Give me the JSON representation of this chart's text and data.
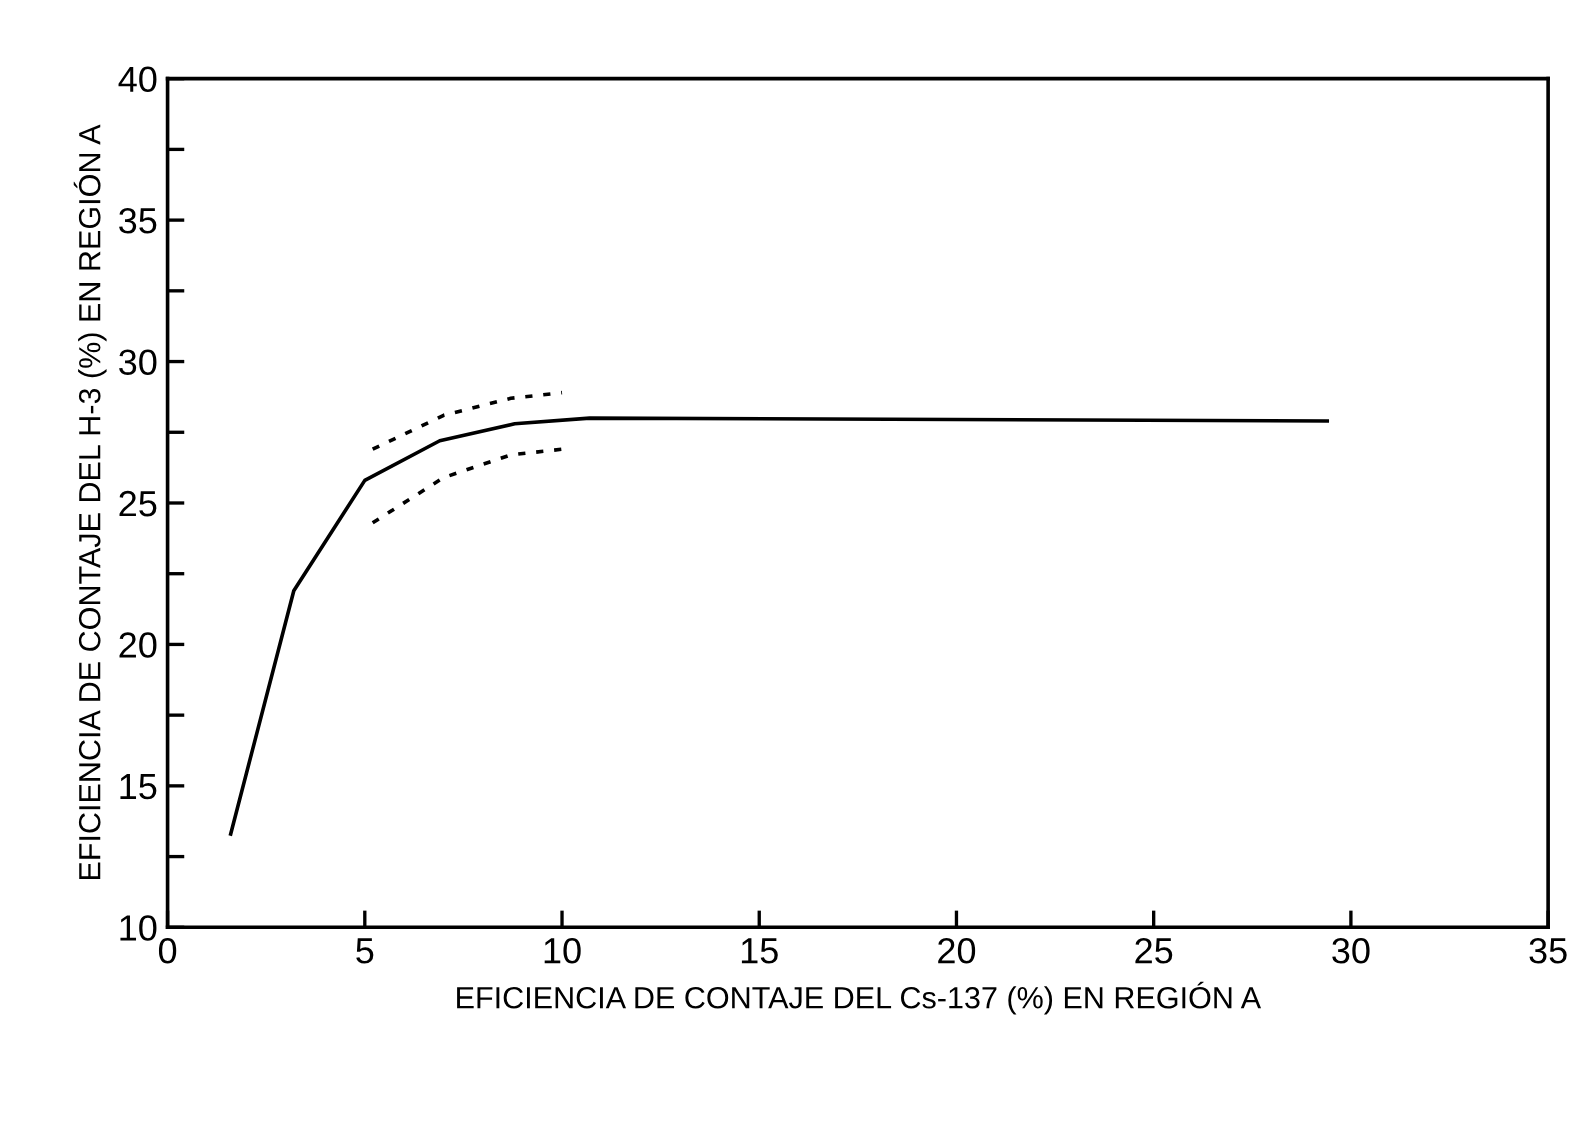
{
  "chart_data": {
    "type": "line",
    "xlabel": "EFICIENCIA DE CONTAJE DEL Cs-137 (%) EN REGIÓN A",
    "ylabel": "EFICIENCIA DE CONTAJE DEL H-3 (%) EN REGIÓN A",
    "xlim": [
      0,
      35
    ],
    "ylim": [
      10,
      40
    ],
    "xticks": [
      0,
      5,
      10,
      15,
      20,
      25,
      30,
      35
    ],
    "yticks": [
      10,
      {
        "value": 12.5,
        "label": null
      },
      15,
      {
        "value": 17.5,
        "label": null
      },
      20,
      {
        "value": 22.5,
        "label": null
      },
      25,
      {
        "value": 27.5,
        "label": null
      },
      30,
      {
        "value": 32.5,
        "label": null
      },
      35,
      {
        "value": 37.5,
        "label": null
      },
      40
    ],
    "grid": false,
    "legend": false,
    "marker": "none",
    "series": [
      {
        "color": "#000000",
        "line_style": "solid",
        "x": [
          1.6,
          3.2,
          5.0,
          6.9,
          8.8,
          10.7,
          29.4
        ],
        "values": [
          13.3,
          21.9,
          25.8,
          27.2,
          27.8,
          28.0,
          27.9
        ]
      },
      {
        "color": "#000000",
        "line_style": "dotted",
        "x": [
          5.2,
          7.0,
          8.7,
          10.0
        ],
        "values": [
          26.9,
          28.1,
          28.7,
          28.9
        ]
      },
      {
        "color": "#000000",
        "line_style": "dotted",
        "x": [
          5.2,
          7.0,
          8.7,
          10.0
        ],
        "values": [
          24.3,
          25.9,
          26.7,
          26.9
        ]
      }
    ]
  }
}
